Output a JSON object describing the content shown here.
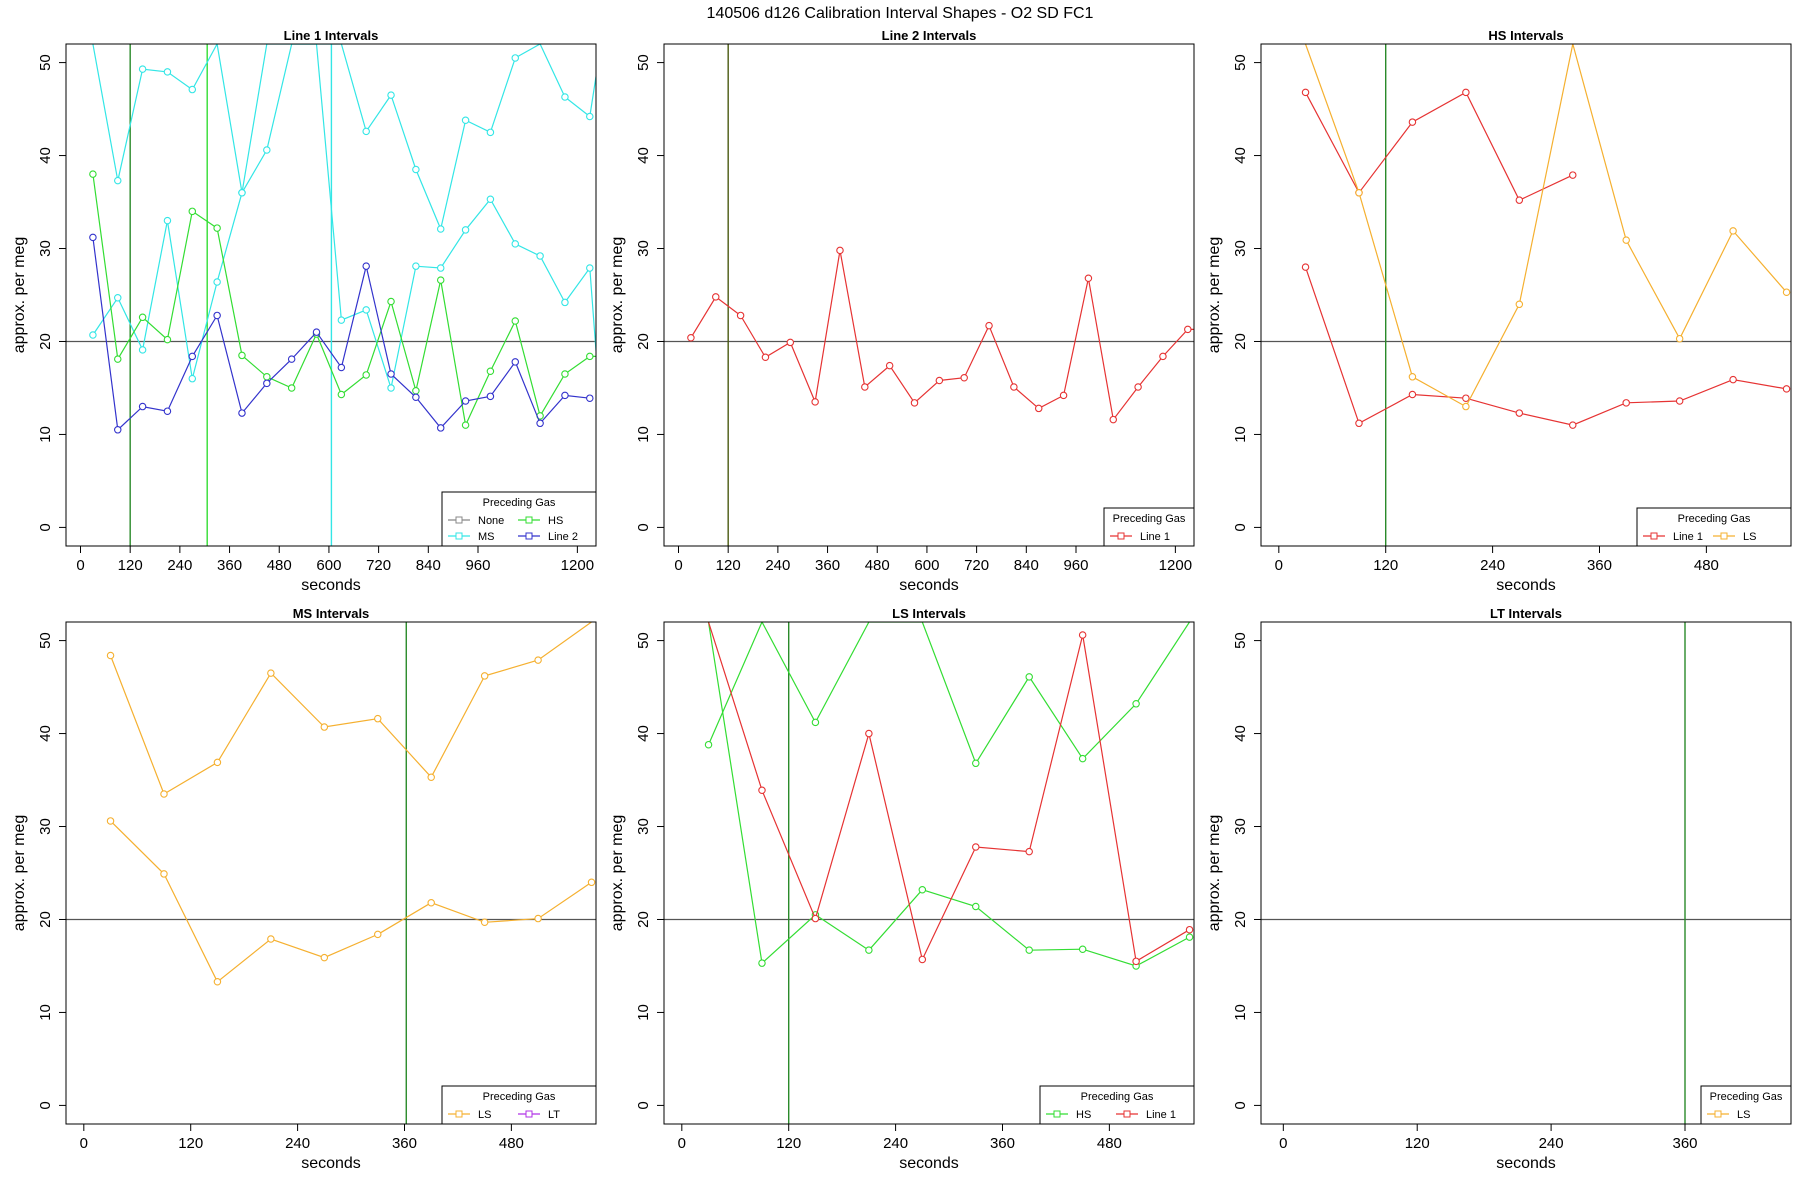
{
  "title": "140506   d126   Calibration Interval Shapes - O2 SD FC1",
  "colors": {
    "None": "#888888",
    "MS": "#33e6e6",
    "HS": "#33dd33",
    "Line 2": "#3333cc",
    "Line 1": "#e63333",
    "LS": "#f5b030",
    "LT": "#b030e6",
    "vline_green": "#2a8a2a",
    "vline_olive": "#4a5a10",
    "hline": "#555555"
  },
  "chart_data": [
    {
      "type": "line",
      "title": "Line 1 Intervals",
      "xlabel": "seconds",
      "ylabel": "approx. per meg",
      "xlim": [
        -35,
        1245
      ],
      "ylim": [
        -2,
        52
      ],
      "xticks": [
        0,
        120,
        240,
        360,
        480,
        600,
        720,
        840,
        960,
        1200
      ],
      "yticks": [
        0,
        10,
        20,
        30,
        40,
        50
      ],
      "hline": 20,
      "vlines": [
        {
          "x": 120,
          "colorKey": "vline_green"
        },
        {
          "x": 306,
          "colorKey": "HS"
        },
        {
          "x": 606,
          "colorKey": "MS"
        }
      ],
      "legend": {
        "title": "Preceding Gas",
        "position": "bottom-right",
        "entries": [
          "None",
          "HS",
          "MS",
          "Line 2"
        ],
        "columns": 2
      },
      "series": [
        {
          "name": "MS",
          "x": [
            30,
            90,
            150,
            210,
            270,
            330,
            390,
            450,
            510,
            570,
            630,
            690,
            750,
            810,
            870,
            930,
            990,
            1050,
            1110,
            1170,
            1230,
            1245
          ],
          "y": [
            52,
            37.3,
            49.3,
            49,
            47.1,
            52,
            36,
            40.6,
            52,
            52,
            52,
            42.6,
            46.5,
            38.5,
            32.1,
            43.8,
            42.5,
            50.5,
            52,
            46.3,
            44.2,
            48.5
          ]
        },
        {
          "name": "MS",
          "x": [
            30,
            90,
            150,
            210,
            270,
            330,
            390,
            450,
            510,
            570,
            630,
            690,
            750,
            810,
            870,
            930,
            990,
            1050,
            1110,
            1170,
            1230,
            1245
          ],
          "y": [
            20.7,
            24.7,
            19.1,
            33,
            16,
            26.4,
            36,
            52,
            52,
            52,
            22.3,
            23.4,
            15,
            28.1,
            27.9,
            32,
            35.3,
            30.5,
            29.2,
            24.2,
            27.9,
            19
          ]
        },
        {
          "name": "HS",
          "x": [
            30,
            90,
            150,
            210,
            270,
            330,
            390,
            450,
            510,
            570,
            630,
            690,
            750,
            810,
            870,
            930,
            990,
            1050,
            1110,
            1170,
            1230,
            1245
          ],
          "y": [
            38,
            18.1,
            22.6,
            20.2,
            34,
            32.2,
            18.5,
            16.2,
            15,
            20.8,
            14.3,
            16.4,
            24.3,
            14.7,
            26.6,
            11,
            16.8,
            22.2,
            12,
            16.5,
            18.4,
            18.4
          ]
        },
        {
          "name": "Line 2",
          "x": [
            30,
            90,
            150,
            210,
            270,
            330,
            390,
            450,
            510,
            570,
            630,
            690,
            750,
            810,
            870,
            930,
            990,
            1050,
            1110,
            1170,
            1230
          ],
          "y": [
            31.2,
            10.5,
            13,
            12.5,
            18.4,
            22.8,
            12.3,
            15.5,
            18.1,
            21,
            17.2,
            28.1,
            16.5,
            14,
            10.7,
            13.6,
            14.1,
            17.8,
            11.2,
            14.2,
            13.9
          ]
        }
      ]
    },
    {
      "type": "line",
      "title": "Line 2 Intervals",
      "xlabel": "seconds",
      "ylabel": "approx. per meg",
      "xlim": [
        -35,
        1245
      ],
      "ylim": [
        -2,
        52
      ],
      "xticks": [
        0,
        120,
        240,
        360,
        480,
        600,
        720,
        840,
        960,
        1200
      ],
      "yticks": [
        0,
        10,
        20,
        30,
        40,
        50
      ],
      "hline": 20,
      "vlines": [
        {
          "x": 120,
          "colorKey": "vline_olive"
        }
      ],
      "legend": {
        "title": "Preceding Gas",
        "position": "bottom-right",
        "entries": [
          "Line 1"
        ],
        "columns": 1
      },
      "series": [
        {
          "name": "Line 1",
          "x": [
            30,
            90,
            150,
            210,
            270,
            330,
            390,
            450,
            510,
            570,
            630,
            690,
            750,
            810,
            870,
            930,
            990,
            1050,
            1110,
            1170,
            1230,
            1245
          ],
          "y": [
            20.4,
            24.8,
            22.8,
            18.3,
            19.9,
            13.5,
            29.8,
            15.1,
            17.4,
            13.4,
            15.8,
            16.1,
            21.7,
            15.1,
            12.8,
            14.2,
            26.8,
            11.6,
            15.1,
            18.4,
            21.3,
            21.3
          ]
        }
      ]
    },
    {
      "type": "line",
      "title": "HS Intervals",
      "xlabel": "seconds",
      "ylabel": "approx. per meg",
      "xlim": [
        -20,
        575
      ],
      "ylim": [
        -2,
        52
      ],
      "xticks": [
        0,
        120,
        240,
        360,
        480
      ],
      "yticks": [
        0,
        10,
        20,
        30,
        40,
        50
      ],
      "hline": 20,
      "vlines": [
        {
          "x": 120,
          "colorKey": "vline_green"
        }
      ],
      "legend": {
        "title": "Preceding Gas",
        "position": "bottom-right",
        "entries": [
          "Line 1",
          "LS"
        ],
        "columns": 2
      },
      "series": [
        {
          "name": "Line 1",
          "x": [
            30,
            90,
            150,
            210,
            270,
            330
          ],
          "y": [
            46.8,
            36,
            43.6,
            46.8,
            35.2,
            37.9
          ]
        },
        {
          "name": "Line 1",
          "x": [
            30,
            90,
            150,
            210,
            270,
            330,
            390,
            450,
            510,
            570
          ],
          "y": [
            28,
            11.2,
            14.3,
            13.9,
            12.3,
            11,
            13.4,
            13.6,
            15.9,
            14.9
          ]
        },
        {
          "name": "LS",
          "x": [
            30,
            90,
            150,
            210,
            270,
            330,
            390,
            450,
            510,
            570
          ],
          "y": [
            52,
            36,
            16.2,
            13,
            24,
            52,
            30.9,
            20.3,
            31.9,
            25.3
          ]
        }
      ]
    },
    {
      "type": "line",
      "title": "MS Intervals",
      "xlabel": "seconds",
      "ylabel": "approx. per meg",
      "xlim": [
        -20,
        575
      ],
      "ylim": [
        -2,
        52
      ],
      "xticks": [
        0,
        120,
        240,
        360,
        480
      ],
      "yticks": [
        0,
        10,
        20,
        30,
        40,
        50
      ],
      "hline": 20,
      "vlines": [
        {
          "x": 362,
          "colorKey": "vline_green"
        }
      ],
      "legend": {
        "title": "Preceding Gas",
        "position": "bottom-right",
        "entries": [
          "LS",
          "LT"
        ],
        "columns": 2
      },
      "series": [
        {
          "name": "LS",
          "x": [
            30,
            90,
            150,
            210,
            270,
            330,
            390,
            450,
            510,
            570
          ],
          "y": [
            48.4,
            33.5,
            36.9,
            46.5,
            40.7,
            41.6,
            35.3,
            46.2,
            47.9,
            52
          ]
        },
        {
          "name": "LS",
          "x": [
            30,
            90,
            150,
            210,
            270,
            330,
            390,
            450,
            510,
            570
          ],
          "y": [
            30.6,
            24.9,
            13.3,
            17.9,
            15.9,
            18.4,
            21.8,
            19.7,
            20.1,
            24
          ]
        }
      ]
    },
    {
      "type": "line",
      "title": "LS Intervals",
      "xlabel": "seconds",
      "ylabel": "approx. per meg",
      "xlim": [
        -20,
        575
      ],
      "ylim": [
        -2,
        52
      ],
      "xticks": [
        0,
        120,
        240,
        360,
        480
      ],
      "yticks": [
        0,
        10,
        20,
        30,
        40,
        50
      ],
      "hline": 20,
      "vlines": [
        {
          "x": 120,
          "colorKey": "vline_green"
        }
      ],
      "legend": {
        "title": "Preceding Gas",
        "position": "bottom-right",
        "entries": [
          "HS",
          "Line 1"
        ],
        "columns": 2
      },
      "series": [
        {
          "name": "HS",
          "x": [
            30,
            90,
            150,
            210,
            270,
            330,
            390,
            450,
            510,
            570
          ],
          "y": [
            38.8,
            52,
            41.2,
            52,
            52,
            36.8,
            46.1,
            37.3,
            43.2,
            52
          ]
        },
        {
          "name": "HS",
          "x": [
            30,
            90,
            150,
            210,
            270,
            330,
            390,
            450,
            510,
            570
          ],
          "y": [
            52,
            15.3,
            20.5,
            16.7,
            23.2,
            21.4,
            16.7,
            16.8,
            15,
            18.1
          ]
        },
        {
          "name": "Line 1",
          "x": [
            30,
            90,
            150,
            210,
            270,
            330,
            390,
            450,
            510,
            570
          ],
          "y": [
            52,
            33.9,
            20.1,
            40,
            15.7,
            27.8,
            27.3,
            50.6,
            15.5,
            18.9
          ]
        }
      ]
    },
    {
      "type": "line",
      "title": "LT Intervals",
      "xlabel": "seconds",
      "ylabel": "approx. per meg",
      "xlim": [
        -20,
        455
      ],
      "ylim": [
        -2,
        52
      ],
      "xticks": [
        0,
        120,
        240,
        360
      ],
      "yticks": [
        0,
        10,
        20,
        30,
        40,
        50
      ],
      "hline": 20,
      "vlines": [
        {
          "x": 360,
          "colorKey": "vline_green"
        }
      ],
      "legend": {
        "title": "Preceding Gas",
        "position": "bottom-right",
        "entries": [
          "LS"
        ],
        "columns": 1
      },
      "series": []
    }
  ]
}
